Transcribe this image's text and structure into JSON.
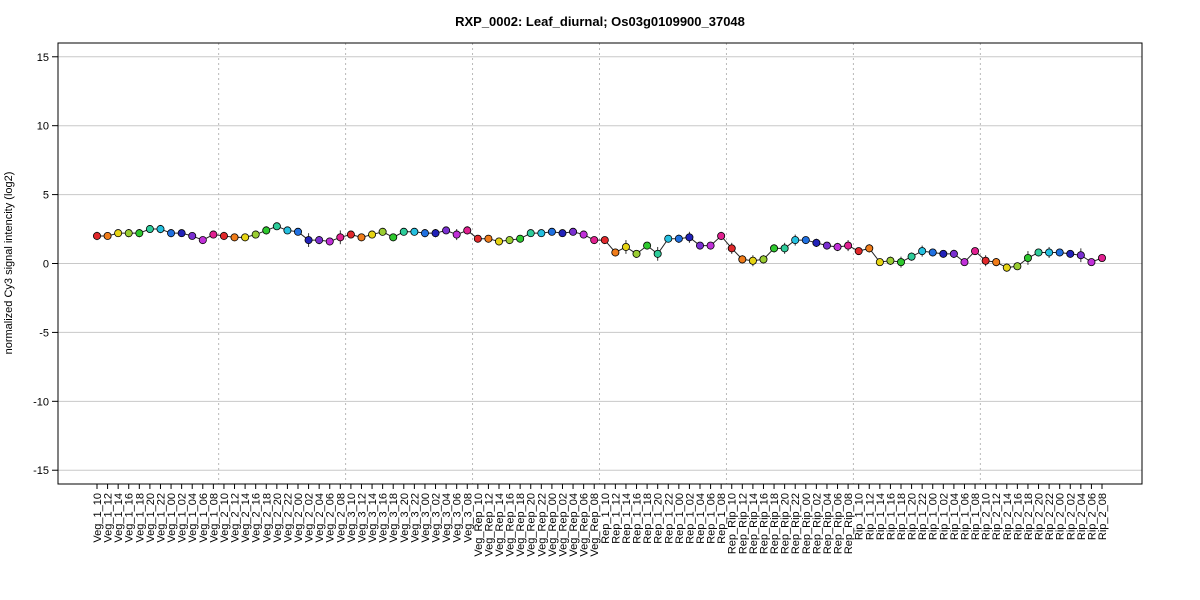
{
  "chart_data": {
    "type": "line",
    "title": "RXP_0002: Leaf_diurnal; Os03g0109900_37048",
    "xlabel": "",
    "ylabel": "normalized Cy3 signal intencity (log2)",
    "ylim": [
      -16,
      16
    ],
    "yticks": [
      -15,
      -10,
      -5,
      0,
      5,
      10,
      15
    ],
    "grid": true,
    "legend": "none",
    "categories": [
      "Veg_1_10",
      "Veg_1_12",
      "Veg_1_14",
      "Veg_1_16",
      "Veg_1_18",
      "Veg_1_20",
      "Veg_1_22",
      "Veg_1_00",
      "Veg_1_02",
      "Veg_1_04",
      "Veg_1_06",
      "Veg_1_08",
      "Veg_2_10",
      "Veg_2_12",
      "Veg_2_14",
      "Veg_2_16",
      "Veg_2_18",
      "Veg_2_20",
      "Veg_2_22",
      "Veg_2_00",
      "Veg_2_02",
      "Veg_2_04",
      "Veg_2_06",
      "Veg_2_08",
      "Veg_3_10",
      "Veg_3_12",
      "Veg_3_14",
      "Veg_3_16",
      "Veg_3_18",
      "Veg_3_20",
      "Veg_3_22",
      "Veg_3_00",
      "Veg_3_02",
      "Veg_3_04",
      "Veg_3_06",
      "Veg_3_08",
      "Veg_Rep_10",
      "Veg_Rep_12",
      "Veg_Rep_14",
      "Veg_Rep_16",
      "Veg_Rep_18",
      "Veg_Rep_20",
      "Veg_Rep_22",
      "Veg_Rep_00",
      "Veg_Rep_02",
      "Veg_Rep_04",
      "Veg_Rep_06",
      "Veg_Rep_08",
      "Rep_1_10",
      "Rep_1_12",
      "Rep_1_14",
      "Rep_1_16",
      "Rep_1_18",
      "Rep_1_20",
      "Rep_1_22",
      "Rep_1_00",
      "Rep_1_02",
      "Rep_1_04",
      "Rep_1_06",
      "Rep_1_08",
      "Rep_Rip_10",
      "Rep_Rip_12",
      "Rep_Rip_14",
      "Rep_Rip_16",
      "Rep_Rip_18",
      "Rep_Rip_20",
      "Rep_Rip_22",
      "Rep_Rip_00",
      "Rep_Rip_02",
      "Rep_Rip_04",
      "Rep_Rip_06",
      "Rep_Rip_08",
      "Rip_1_10",
      "Rip_1_12",
      "Rip_1_14",
      "Rip_1_16",
      "Rip_1_18",
      "Rip_1_20",
      "Rip_1_22",
      "Rip_1_00",
      "Rip_1_02",
      "Rip_1_04",
      "Rip_1_06",
      "Rip_1_08",
      "Rip_2_10",
      "Rip_2_12",
      "Rip_2_14",
      "Rip_2_16",
      "Rip_2_18",
      "Rip_2_20",
      "Rip_2_22",
      "Rip_2_00",
      "Rip_2_02",
      "Rip_2_04",
      "Rip_2_06",
      "Rip_2_08"
    ],
    "series": [
      {
        "values": [
          2.0,
          2.0,
          2.2,
          2.2,
          2.2,
          2.5,
          2.5,
          2.2,
          2.2,
          2.0,
          1.7,
          2.1,
          2.0,
          1.9,
          1.9,
          2.1,
          2.4,
          2.7,
          2.4,
          2.3,
          1.7,
          1.7,
          1.6,
          1.9,
          2.1,
          1.9,
          2.1,
          2.3,
          1.9,
          2.3,
          2.3,
          2.2,
          2.2,
          2.4,
          2.1,
          2.4,
          1.8,
          1.8,
          1.6,
          1.7,
          1.8,
          2.2,
          2.2,
          2.3,
          2.2,
          2.3,
          2.1,
          1.7,
          1.7,
          0.8,
          1.2,
          0.7,
          1.3,
          0.7,
          1.8,
          1.8,
          1.9,
          1.3,
          1.3,
          2.0,
          1.1,
          0.3,
          0.2,
          0.3,
          1.1,
          1.1,
          1.7,
          1.7,
          1.5,
          1.3,
          1.2,
          1.3,
          0.9,
          1.1,
          0.1,
          0.2,
          0.1,
          0.5,
          0.9,
          0.8,
          0.7,
          0.7,
          0.1,
          0.9,
          0.2,
          0.1,
          -0.3,
          -0.2,
          0.4,
          0.8,
          0.8,
          0.8,
          0.7,
          0.6,
          0.1,
          0.4
        ],
        "errors": [
          0.3,
          0.15,
          0.15,
          0.3,
          0.3,
          0.2,
          0.3,
          0.3,
          0.2,
          0.15,
          0.2,
          0.15,
          0.3,
          0.15,
          0.15,
          0.2,
          0.3,
          0.2,
          0.15,
          0.2,
          0.5,
          0.3,
          0.2,
          0.5,
          0.15,
          0.2,
          0.15,
          0.15,
          0.2,
          0.15,
          0.15,
          0.3,
          0.3,
          0.15,
          0.4,
          0.3,
          0.15,
          0.2,
          0.2,
          0.15,
          0.2,
          0.15,
          0.15,
          0.15,
          0.15,
          0.15,
          0.2,
          0.15,
          0.15,
          0.2,
          0.5,
          0.2,
          0.15,
          0.5,
          0.2,
          0.3,
          0.4,
          0.2,
          0.2,
          0.3,
          0.4,
          0.3,
          0.4,
          0.3,
          0.3,
          0.4,
          0.4,
          0.2,
          0.3,
          0.2,
          0.3,
          0.4,
          0.15,
          0.3,
          0.15,
          0.3,
          0.4,
          0.3,
          0.4,
          0.2,
          0.2,
          0.3,
          0.15,
          0.15,
          0.4,
          0.3,
          0.3,
          0.2,
          0.5,
          0.15,
          0.4,
          0.2,
          0.15,
          0.5,
          0.2,
          0.15
        ]
      }
    ],
    "point_colors": [
      "#e0282b",
      "#f07c1a",
      "#e6d414",
      "#9acd32",
      "#2ec82e",
      "#2ecc9a",
      "#25c0e0",
      "#2070e0",
      "#2222b8",
      "#7a30d0",
      "#c030d8",
      "#e02090"
    ],
    "group_separators_after": [
      11,
      23,
      35,
      47,
      59,
      71,
      83
    ]
  }
}
